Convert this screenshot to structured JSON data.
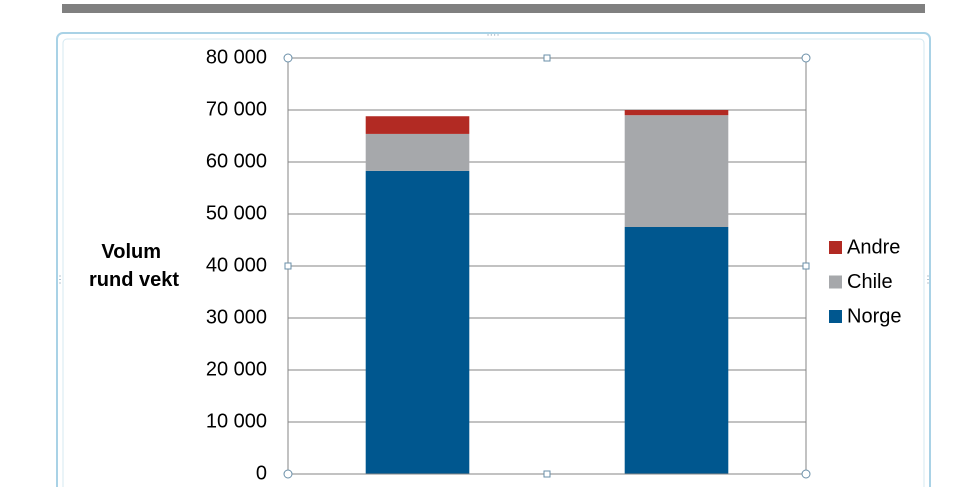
{
  "chart_data": {
    "type": "stacked_bar",
    "y_label": [
      "Volum",
      "rund vekt"
    ],
    "categories": [
      null,
      null
    ],
    "series": [
      {
        "name": "Norge",
        "color": "#00578f",
        "values": [
          58300,
          47500
        ]
      },
      {
        "name": "Chile",
        "color": "#a6a8ab",
        "values": [
          7100,
          21500
        ]
      },
      {
        "name": "Andre",
        "color": "#b22a23",
        "values": [
          3400,
          1000
        ]
      }
    ],
    "ylim": [
      0,
      80000
    ],
    "yticks": [
      0,
      {
        "value": 10000,
        "label": "10 000"
      },
      {
        "value": 20000,
        "label": "20 000"
      },
      {
        "value": 30000,
        "label": "30 000"
      },
      {
        "value": 40000,
        "label": "40 000"
      },
      {
        "value": 50000,
        "label": "50 000"
      },
      {
        "value": 60000,
        "label": "60 000"
      },
      {
        "value": 70000,
        "label": "70 000"
      },
      {
        "value": 80000,
        "label": "80 000"
      }
    ],
    "grid": true,
    "legend": "right"
  }
}
